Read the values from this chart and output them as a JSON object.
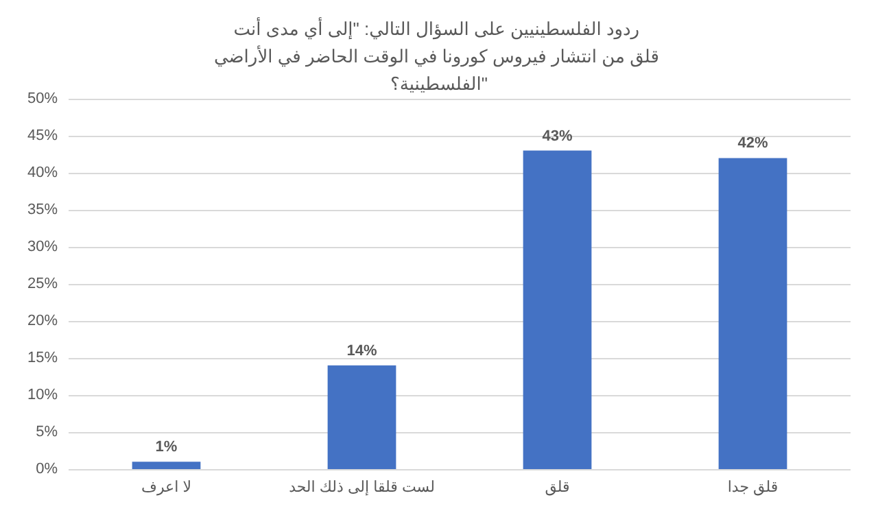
{
  "chart_data": {
    "type": "bar",
    "title": "ردود الفلسطينيين على السؤال التالي: \"إلى أي مدى أنت قلق من انتشار فيروس كورونا في الوقت الحاضر في الأراضي الفلسطينية؟\"",
    "categories": [
      "لا اعرف",
      "لست قلقا إلى ذلك الحد",
      "قلق",
      "قلق جدا"
    ],
    "values": [
      1,
      14,
      43,
      42
    ],
    "value_labels": [
      "1%",
      "14%",
      "43%",
      "42%"
    ],
    "color": "#4472c4",
    "ylim": [
      0,
      50
    ],
    "yticks": [
      {
        "value": 0,
        "label": "0%"
      },
      {
        "value": 5,
        "label": "5%"
      },
      {
        "value": 10,
        "label": "10%"
      },
      {
        "value": 15,
        "label": "15%"
      },
      {
        "value": 20,
        "label": "20%"
      },
      {
        "value": 25,
        "label": "25%"
      },
      {
        "value": 30,
        "label": "30%"
      },
      {
        "value": 35,
        "label": "35%"
      },
      {
        "value": 40,
        "label": "40%"
      },
      {
        "value": 45,
        "label": "45%"
      },
      {
        "value": 50,
        "label": "50%"
      }
    ],
    "grid": "y"
  }
}
